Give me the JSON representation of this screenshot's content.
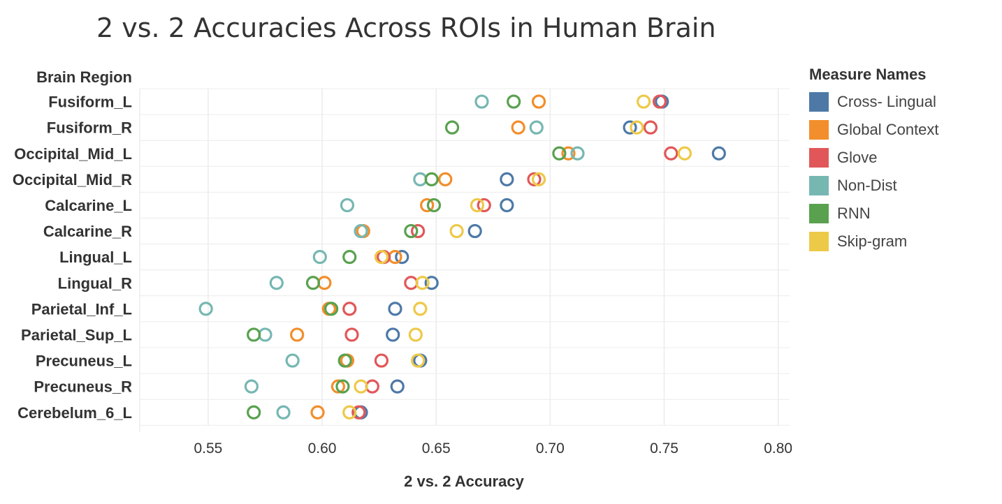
{
  "chart_data": {
    "type": "scatter",
    "title": "2 vs. 2 Accuracies Across ROIs in Human Brain",
    "xlabel": "2 vs. 2 Accuracy",
    "row_header": "Brain Region",
    "legend_title": "Measure Names",
    "legend_position": "right",
    "xlim": [
      0.52,
      0.805
    ],
    "xticks": [
      0.55,
      0.6,
      0.65,
      0.7,
      0.75,
      0.8
    ],
    "xtick_labels": [
      "0.55",
      "0.60",
      "0.65",
      "0.70",
      "0.75",
      "0.80"
    ],
    "grid": true,
    "categories": [
      "Fusiform_L",
      "Fusiform_R",
      "Occipital_Mid_L",
      "Occipital_Mid_R",
      "Calcarine_L",
      "Calcarine_R",
      "Lingual_L",
      "Lingual_R",
      "Parietal_Inf_L",
      "Parietal_Sup_L",
      "Precuneus_L",
      "Precuneus_R",
      "Cerebelum_6_L"
    ],
    "series": [
      {
        "name": "Cross- Lingual",
        "color": "#4e79a7",
        "values": [
          0.749,
          0.735,
          0.774,
          0.681,
          0.681,
          0.667,
          0.635,
          0.648,
          0.632,
          0.631,
          0.643,
          0.633,
          0.617
        ]
      },
      {
        "name": "Global  Context",
        "color": "#f28e2b",
        "values": [
          0.695,
          0.686,
          0.708,
          0.654,
          0.646,
          0.618,
          0.632,
          0.601,
          0.603,
          0.589,
          0.611,
          0.607,
          0.598
        ]
      },
      {
        "name": "Glove",
        "color": "#e15759",
        "values": [
          0.748,
          0.744,
          0.753,
          0.693,
          0.671,
          0.642,
          0.627,
          0.639,
          0.612,
          0.613,
          0.626,
          0.622,
          0.616
        ]
      },
      {
        "name": "Non-Dist",
        "color": "#76b7b2",
        "values": [
          0.67,
          0.694,
          0.712,
          0.643,
          0.611,
          0.617,
          0.599,
          0.58,
          0.549,
          0.575,
          0.587,
          0.569,
          0.583
        ]
      },
      {
        "name": "RNN",
        "color": "#59a14f",
        "values": [
          0.684,
          0.657,
          0.704,
          0.648,
          0.649,
          0.639,
          0.612,
          0.596,
          0.604,
          0.57,
          0.61,
          0.609,
          0.57
        ]
      },
      {
        "name": "Skip-gram",
        "color": "#edc948",
        "values": [
          0.741,
          0.738,
          0.759,
          0.695,
          0.668,
          0.659,
          0.626,
          0.644,
          0.643,
          0.641,
          0.642,
          0.617,
          0.612
        ]
      }
    ]
  }
}
